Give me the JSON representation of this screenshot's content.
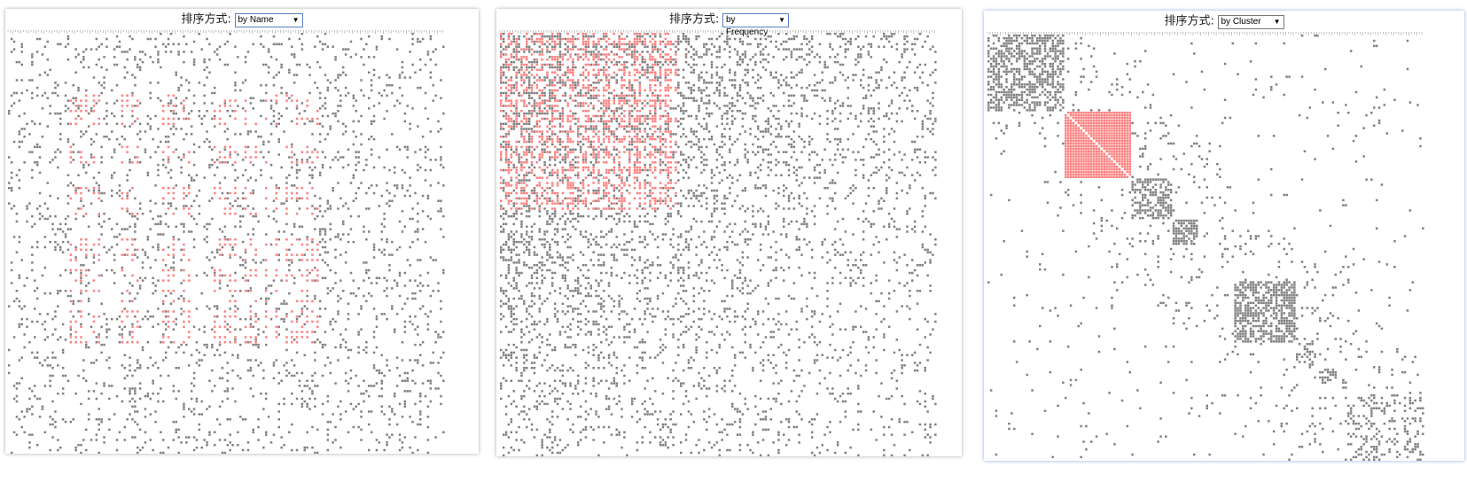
{
  "panels": [
    {
      "sort_label": "排序方式:",
      "sort_value": "by Name"
    },
    {
      "sort_label": "排序方式:",
      "sort_value": "by Frequency"
    },
    {
      "sort_label": "排序方式:",
      "sort_value": "by Cluster"
    }
  ],
  "colors": {
    "cell": "#808080",
    "highlight": "#ff8080",
    "label_tick": "#999999"
  },
  "chart_data": [
    {
      "type": "heatmap",
      "order": "by Name",
      "highlight_cluster": true
    },
    {
      "type": "heatmap",
      "order": "by Frequency",
      "highlight_cluster": true
    },
    {
      "type": "heatmap",
      "order": "by Cluster",
      "highlight_cluster": true
    }
  ]
}
